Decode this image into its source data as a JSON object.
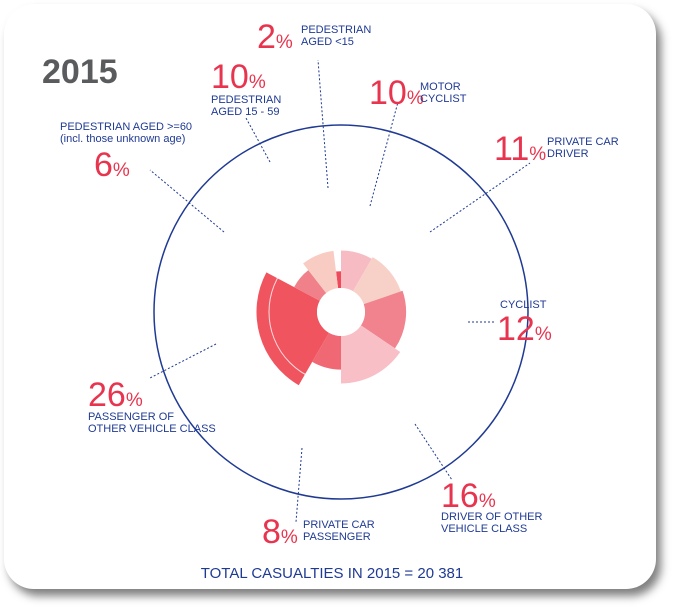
{
  "year": "2015",
  "total_label": "TOTAL CASUALTIES IN 2015 = 20 381",
  "chart_data": {
    "type": "polar-area",
    "title": "2015",
    "total": 20381,
    "slices": [
      {
        "label": "PEDESTRIAN AGED <15",
        "value_pct": 2,
        "color": "#ee4a5c"
      },
      {
        "label": "MOTOR CYCLIST",
        "value_pct": 10,
        "color": "#f7bcc3"
      },
      {
        "label": "PRIVATE CAR DRIVER",
        "value_pct": 11,
        "color": "#f7d0c8"
      },
      {
        "label": "CYCLIST",
        "value_pct": 12,
        "color": "#f0838d"
      },
      {
        "label": "DRIVER OF OTHER VEHICLE CLASS",
        "value_pct": 16,
        "color": "#f9bfc6"
      },
      {
        "label": "PRIVATE CAR PASSENGER",
        "value_pct": 8,
        "color": "#ef6874"
      },
      {
        "label": "PASSENGER OF OTHER VEHICLE CLASS",
        "value_pct": 26,
        "color": "#f0545f"
      },
      {
        "label": "PEDESTRIAN AGED >=60 (incl. those unknown age)",
        "value_pct": 6,
        "color": "#f08089"
      },
      {
        "label": "PEDESTRIAN AGED 15 - 59",
        "value_pct": 10,
        "color": "#f9ccc3"
      }
    ],
    "annotations": [
      {
        "num": "2",
        "sign": "%",
        "lines": [
          "PEDESTRIAN",
          "AGED <15"
        ]
      },
      {
        "num": "10",
        "sign": "%",
        "lines": [
          "MOTOR",
          "CYCLIST"
        ]
      },
      {
        "num": "11",
        "sign": "%",
        "lines": [
          "PRIVATE CAR",
          "DRIVER"
        ]
      },
      {
        "num": "12",
        "sign": "%",
        "lines": [
          "CYCLIST"
        ]
      },
      {
        "num": "16",
        "sign": "%",
        "lines": [
          "DRIVER OF OTHER",
          "VEHICLE CLASS"
        ]
      },
      {
        "num": "8",
        "sign": "%",
        "lines": [
          "PRIVATE CAR",
          "PASSENGER"
        ]
      },
      {
        "num": "26",
        "sign": "%",
        "lines": [
          "PASSENGER OF",
          "OTHER VEHICLE CLASS"
        ]
      },
      {
        "num": "6",
        "sign": "%",
        "lines": [
          "PEDESTRIAN AGED >=60",
          "(incl. those unknown age)"
        ]
      },
      {
        "num": "10",
        "sign": "%",
        "lines": [
          "PEDESTRIAN",
          "AGED 15 - 59"
        ]
      }
    ]
  }
}
